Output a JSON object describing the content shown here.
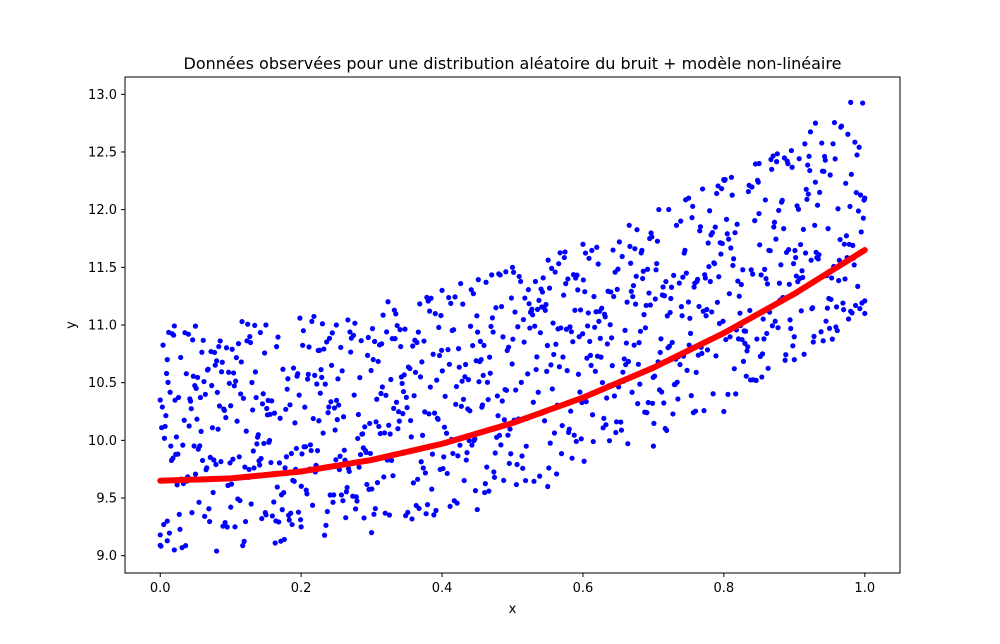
{
  "chart_data": {
    "type": "scatter",
    "title": "Données observées pour une distribution aléatoire du bruit + modèle non-linéaire",
    "xlabel": "x",
    "ylabel": "y",
    "xlim": [
      -0.05,
      1.05
    ],
    "ylim": [
      8.85,
      13.15
    ],
    "xticks": [
      0.0,
      0.2,
      0.4,
      0.6,
      0.8,
      1.0
    ],
    "xtick_labels": [
      "0.0",
      "0.2",
      "0.4",
      "0.6",
      "0.8",
      "1.0"
    ],
    "yticks": [
      9.0,
      9.5,
      10.0,
      10.5,
      11.0,
      11.5,
      12.0,
      12.5,
      13.0
    ],
    "ytick_labels": [
      "9.0",
      "9.5",
      "10.0",
      "10.5",
      "11.0",
      "11.5",
      "12.0",
      "12.5",
      "13.0"
    ],
    "grid": false,
    "series": [
      {
        "kind": "scatter",
        "color": "#0000ff",
        "n_points": 1000,
        "x_range": [
          0.0,
          1.0
        ],
        "noise": "uniform",
        "noise_range": [
          -0.6,
          1.35
        ],
        "points_sample": [
          [
            0.0,
            10.35
          ],
          [
            0.0,
            9.18
          ],
          [
            0.01,
            10.7
          ],
          [
            0.01,
            9.3
          ],
          [
            0.02,
            9.05
          ],
          [
            0.05,
            10.99
          ],
          [
            0.08,
            9.04
          ],
          [
            0.1,
            10.3
          ],
          [
            0.15,
            11.0
          ],
          [
            0.2,
            9.25
          ],
          [
            0.25,
            11.0
          ],
          [
            0.3,
            9.2
          ],
          [
            0.4,
            11.3
          ],
          [
            0.45,
            9.4
          ],
          [
            0.5,
            11.5
          ],
          [
            0.55,
            9.6
          ],
          [
            0.6,
            11.7
          ],
          [
            0.7,
            9.95
          ],
          [
            0.75,
            12.1
          ],
          [
            0.8,
            10.25
          ],
          [
            0.85,
            12.4
          ],
          [
            0.9,
            10.7
          ],
          [
            0.93,
            12.75
          ],
          [
            0.98,
            12.93
          ],
          [
            1.0,
            12.1
          ],
          [
            1.0,
            11.1
          ]
        ]
      },
      {
        "kind": "line",
        "color": "#ff0000",
        "model": "y = 9.65 + 2x^2",
        "x": [
          0.0,
          0.1,
          0.2,
          0.3,
          0.4,
          0.5,
          0.6,
          0.7,
          0.8,
          0.9,
          1.0
        ],
        "y": [
          9.65,
          9.67,
          9.73,
          9.83,
          9.97,
          10.15,
          10.37,
          10.63,
          10.93,
          11.27,
          11.65
        ]
      }
    ]
  }
}
